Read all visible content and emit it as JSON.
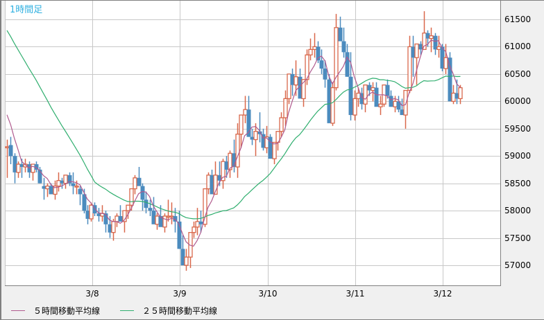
{
  "title": "1時間足",
  "y_axis": {
    "labels": [
      "61500",
      "61000",
      "60500",
      "60000",
      "59500",
      "59000",
      "58500",
      "58000",
      "57500",
      "57000"
    ]
  },
  "x_axis": {
    "labels": [
      "3/8",
      "3/9",
      "3/10",
      "3/11",
      "3/12"
    ]
  },
  "legend": {
    "ma5_label": "５時間移動平均線",
    "ma25_label": "２５時間移動平均線"
  },
  "colors": {
    "up_candle": "#d9674a",
    "down_candle": "#4b8bbe",
    "ma5": "#b05a8e",
    "ma25": "#2fae6e",
    "grid": "#c8c8c8",
    "title": "#2fb0e0"
  },
  "chart_data": {
    "type": "candlestick",
    "title": "1時間足",
    "xlabel": "",
    "ylabel": "",
    "ylim": [
      56700,
      61700
    ],
    "yticks": [
      57000,
      57500,
      58000,
      58500,
      59000,
      59500,
      60000,
      60500,
      61000,
      61500
    ],
    "xticks": [
      "3/8",
      "3/9",
      "3/10",
      "3/11",
      "3/12"
    ],
    "grid": true,
    "legend": [
      "５時間移動平均線",
      "２５時間移動平均線"
    ],
    "legend_position": "bottom-left",
    "series": [
      {
        "name": "candles",
        "ohlc": [
          [
            59150,
            59300,
            58600,
            59170
          ],
          [
            59200,
            59350,
            58850,
            59000
          ],
          [
            59000,
            59050,
            58500,
            58700
          ],
          [
            58700,
            58900,
            58600,
            58850
          ],
          [
            58850,
            58950,
            58600,
            58800
          ],
          [
            58800,
            58950,
            58700,
            58850
          ],
          [
            58850,
            58900,
            58600,
            58700
          ],
          [
            58700,
            58850,
            58550,
            58850
          ],
          [
            58850,
            58900,
            58700,
            58750
          ],
          [
            58750,
            58800,
            58500,
            58500
          ],
          [
            58450,
            58600,
            58200,
            58400
          ],
          [
            58400,
            58500,
            58250,
            58450
          ],
          [
            58450,
            58500,
            58300,
            58300
          ],
          [
            58300,
            58550,
            58200,
            58450
          ],
          [
            58450,
            58700,
            58350,
            58550
          ],
          [
            58550,
            58600,
            58400,
            58500
          ],
          [
            58500,
            58650,
            58400,
            58650
          ],
          [
            58650,
            58700,
            58450,
            58500
          ],
          [
            58500,
            58700,
            58300,
            58450
          ],
          [
            58450,
            58550,
            58300,
            58450
          ],
          [
            58400,
            58450,
            58100,
            58300
          ],
          [
            58300,
            58400,
            57950,
            58000
          ],
          [
            58000,
            58100,
            57750,
            57850
          ],
          [
            57850,
            58150,
            57800,
            58100
          ],
          [
            58100,
            58150,
            57900,
            57950
          ],
          [
            57950,
            58050,
            57800,
            57900
          ],
          [
            57900,
            58100,
            57800,
            57950
          ],
          [
            57950,
            58000,
            57600,
            57750
          ],
          [
            57750,
            57900,
            57500,
            57600
          ],
          [
            57600,
            57850,
            57450,
            57800
          ],
          [
            57800,
            57950,
            57700,
            57900
          ],
          [
            57900,
            58100,
            57800,
            57800
          ],
          [
            57800,
            58000,
            57600,
            58000
          ],
          [
            58000,
            58100,
            57850,
            58100
          ],
          [
            58100,
            58400,
            58000,
            58400
          ],
          [
            58400,
            58650,
            58300,
            58600
          ],
          [
            58600,
            58800,
            58500,
            58450
          ],
          [
            58450,
            58500,
            58000,
            58200
          ],
          [
            58200,
            58350,
            57950,
            58050
          ],
          [
            58050,
            58200,
            57900,
            58000
          ],
          [
            58000,
            58250,
            57900,
            57750
          ],
          [
            57750,
            57950,
            57650,
            57900
          ],
          [
            57900,
            58100,
            57750,
            57700
          ],
          [
            57700,
            57950,
            57600,
            57900
          ],
          [
            57900,
            58200,
            57800,
            57900
          ],
          [
            57900,
            58150,
            57750,
            57900
          ],
          [
            57900,
            58050,
            57600,
            57800
          ],
          [
            57800,
            58000,
            57300,
            57300
          ],
          [
            57300,
            57550,
            57100,
            57000
          ],
          [
            57000,
            57300,
            56900,
            57150
          ],
          [
            57150,
            57600,
            56950,
            57600
          ],
          [
            57600,
            57800,
            57500,
            57700
          ],
          [
            57700,
            58050,
            57550,
            57800
          ],
          [
            57800,
            58000,
            57600,
            57750
          ],
          [
            57750,
            58400,
            57700,
            58400
          ],
          [
            58400,
            58700,
            58300,
            58650
          ],
          [
            58650,
            58750,
            58400,
            58300
          ],
          [
            58300,
            58900,
            58300,
            58650
          ],
          [
            58650,
            58900,
            58450,
            58550
          ],
          [
            58550,
            58950,
            58400,
            58900
          ],
          [
            58900,
            59000,
            58600,
            58750
          ],
          [
            58750,
            59100,
            58600,
            59050
          ],
          [
            59050,
            59300,
            58700,
            58800
          ],
          [
            58800,
            59600,
            58600,
            59400
          ],
          [
            59400,
            59700,
            59150,
            59750
          ],
          [
            59750,
            60100,
            59600,
            59850
          ],
          [
            59850,
            60100,
            59350,
            59350
          ],
          [
            59350,
            59500,
            59200,
            59300
          ],
          [
            59300,
            59600,
            59000,
            59450
          ],
          [
            59450,
            59800,
            59250,
            59400
          ],
          [
            59400,
            59500,
            59100,
            59150
          ],
          [
            59150,
            59550,
            59050,
            59350
          ],
          [
            59350,
            59400,
            59000,
            58950
          ],
          [
            58950,
            59100,
            58850,
            59250
          ],
          [
            59250,
            59450,
            59100,
            59450
          ],
          [
            59450,
            59800,
            59350,
            59700
          ],
          [
            59700,
            60200,
            59550,
            60050
          ],
          [
            60050,
            60450,
            59950,
            60500
          ],
          [
            60500,
            60600,
            60100,
            60300
          ],
          [
            60300,
            60750,
            60100,
            60450
          ],
          [
            60450,
            60600,
            60250,
            60050
          ],
          [
            60050,
            60350,
            59900,
            60400
          ],
          [
            60400,
            60950,
            60300,
            60850
          ],
          [
            60850,
            61150,
            60750,
            60950
          ],
          [
            60950,
            61250,
            60800,
            61000
          ],
          [
            61000,
            61100,
            60700,
            60750
          ],
          [
            60750,
            60950,
            60500,
            60600
          ],
          [
            60600,
            60750,
            60250,
            60400
          ],
          [
            60400,
            60500,
            59650,
            59600
          ],
          [
            59600,
            60350,
            59550,
            60250
          ],
          [
            60250,
            61600,
            60200,
            61350
          ],
          [
            61350,
            61550,
            61100,
            61100
          ],
          [
            61100,
            61350,
            60800,
            60900
          ],
          [
            60900,
            61050,
            60450,
            60450
          ],
          [
            60450,
            60900,
            59650,
            59750
          ],
          [
            59750,
            60200,
            59650,
            60050
          ],
          [
            60050,
            60250,
            59900,
            60150
          ],
          [
            60150,
            60250,
            59850,
            59950
          ],
          [
            59950,
            60300,
            59800,
            60300
          ],
          [
            60300,
            60350,
            60100,
            60200
          ],
          [
            60200,
            60350,
            60000,
            60250
          ],
          [
            60250,
            60350,
            59950,
            59900
          ],
          [
            59900,
            60100,
            59750,
            59950
          ],
          [
            59950,
            60300,
            59900,
            60300
          ],
          [
            60300,
            60400,
            60050,
            60100
          ],
          [
            60100,
            60200,
            59900,
            59900
          ],
          [
            59900,
            60100,
            59800,
            60000
          ],
          [
            60000,
            60100,
            59800,
            59850
          ],
          [
            59850,
            60050,
            59750,
            59750
          ],
          [
            59750,
            60150,
            59500,
            60200
          ],
          [
            60200,
            61200,
            60150,
            61000
          ],
          [
            61000,
            61200,
            60450,
            60800
          ],
          [
            60800,
            61000,
            60300,
            61050
          ],
          [
            61050,
            61100,
            60850,
            60950
          ],
          [
            60950,
            61650,
            60950,
            61250
          ],
          [
            61250,
            61300,
            61000,
            61150
          ],
          [
            61150,
            61350,
            60900,
            61200
          ],
          [
            61200,
            61250,
            60850,
            60950
          ],
          [
            60950,
            61200,
            60800,
            61000
          ],
          [
            61000,
            61050,
            60550,
            60600
          ],
          [
            60600,
            61050,
            60500,
            60800
          ],
          [
            60800,
            60900,
            60500,
            60000
          ],
          [
            60000,
            60300,
            59950,
            60150
          ],
          [
            60150,
            60400,
            59950,
            60050
          ],
          [
            60050,
            60300,
            59950,
            60250
          ]
        ]
      },
      {
        "name": "５時間移動平均線",
        "color": "#b05a8e",
        "description": "5-period MA, starts ~59900 dropping to ~58600 then tracks price, ends ~60150"
      },
      {
        "name": "２５時間移動平均線",
        "color": "#2fae6e",
        "description": "25-period MA, from ~60900 declining to ~57900 around 3/9, rising to ~60500 at 3/11, ~60500 at end"
      }
    ]
  }
}
